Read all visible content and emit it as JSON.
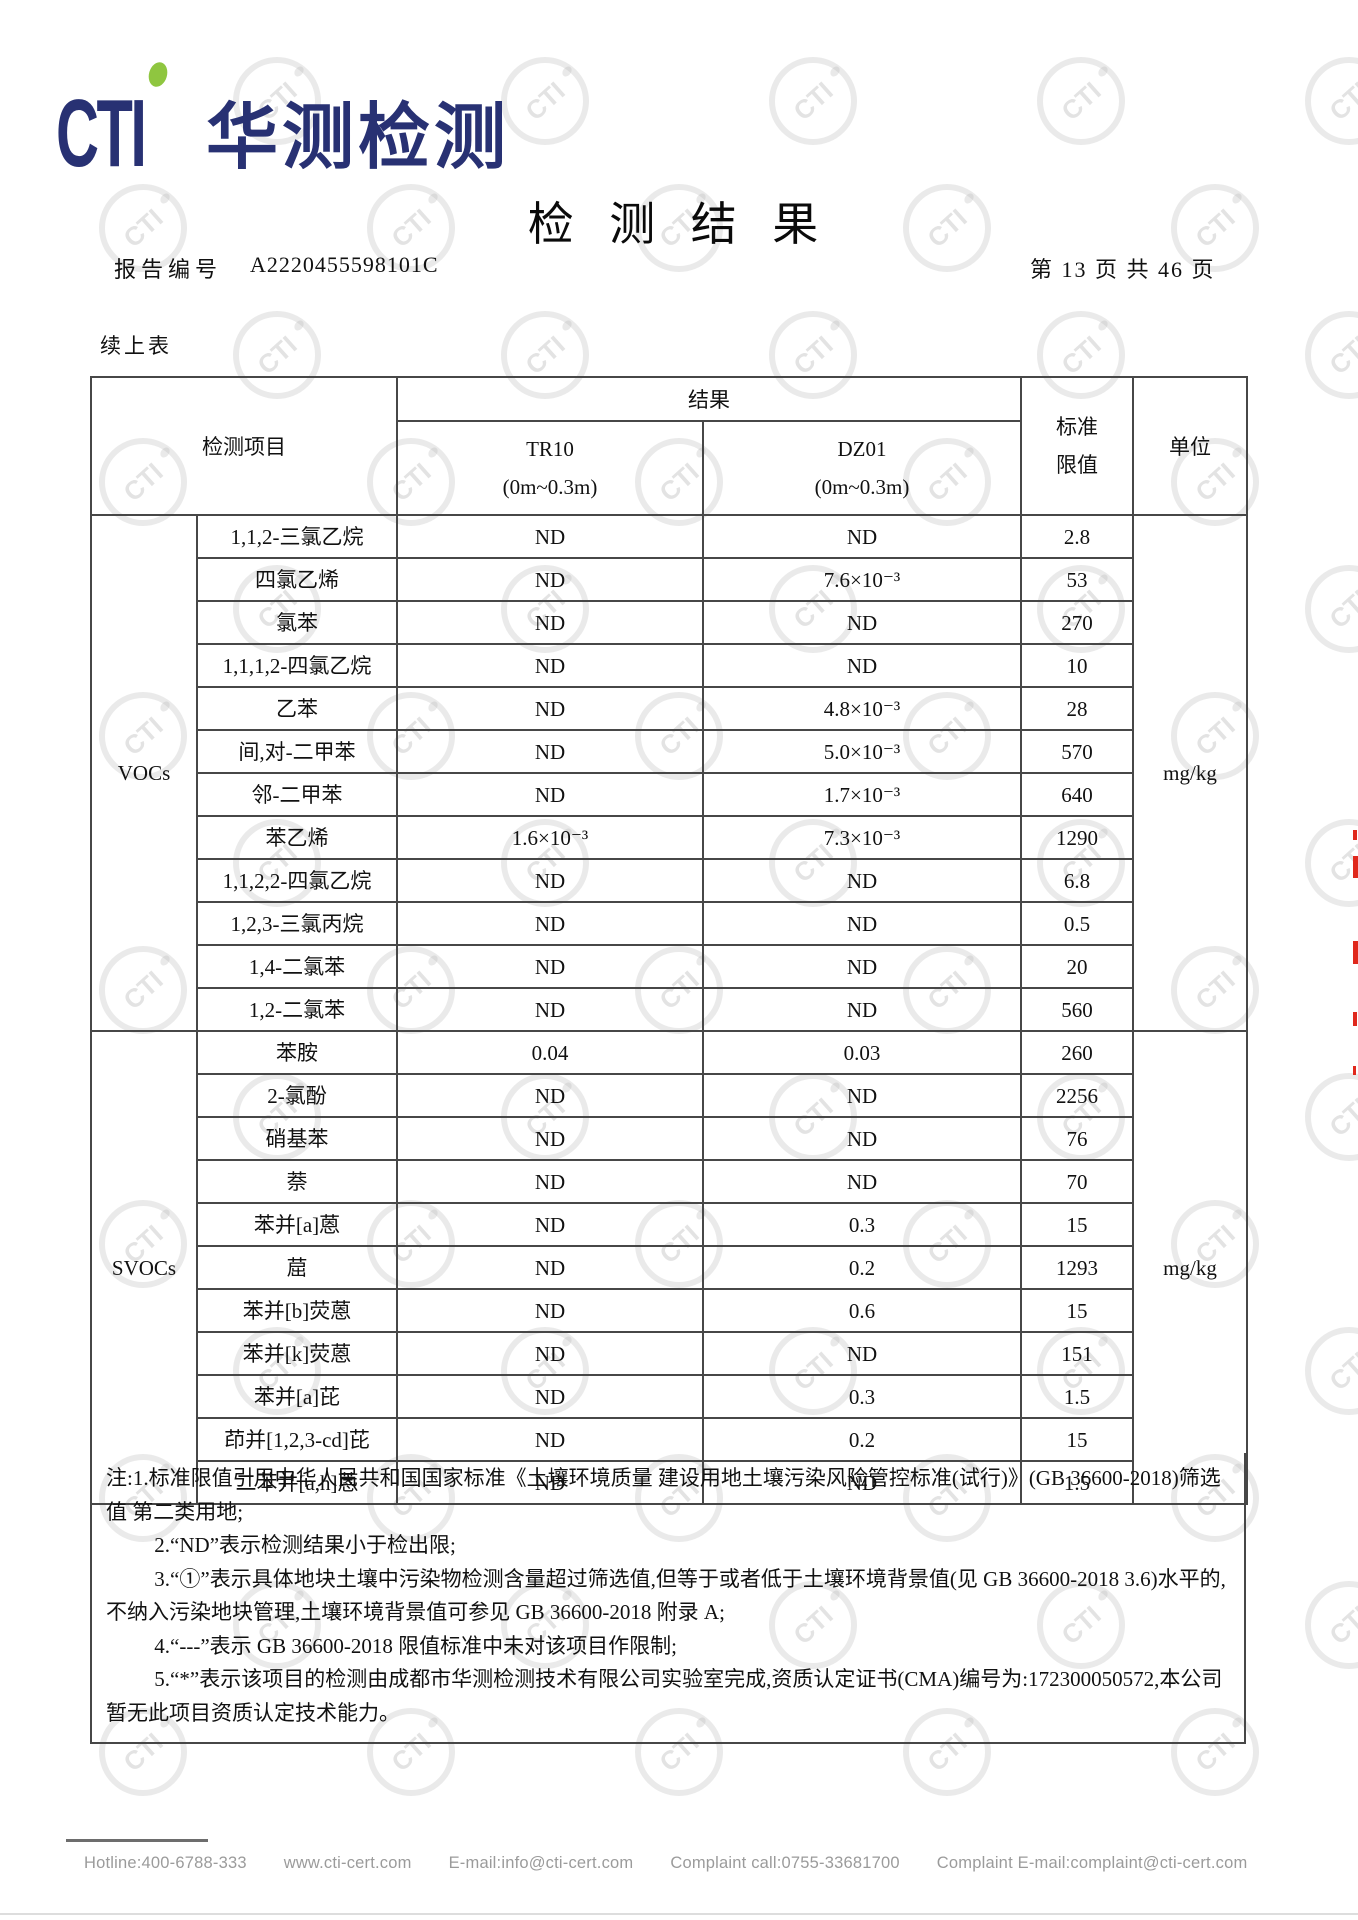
{
  "header": {
    "logo_text": "CTI",
    "brand": "华测检测",
    "title": "检 测 结 果",
    "report_label": "报告编号",
    "report_number": "A2220455598101C",
    "page_info": "第 13 页 共 46 页",
    "continued_label": "续上表"
  },
  "table": {
    "headers": {
      "item": "检测项目",
      "result": "结果",
      "col1": "TR10\n(0m~0.3m)",
      "col2": "DZ01\n(0m~0.3m)",
      "limit": "标准\n限值",
      "unit": "单位"
    },
    "groups": [
      {
        "category": "VOCs",
        "unit": "mg/kg",
        "rows": [
          {
            "name": "1,1,2-三氯乙烷",
            "tr10": "ND",
            "dz01": "ND",
            "limit": "2.8"
          },
          {
            "name": "四氯乙烯",
            "tr10": "ND",
            "dz01": "7.6×10⁻³",
            "limit": "53"
          },
          {
            "name": "氯苯",
            "tr10": "ND",
            "dz01": "ND",
            "limit": "270"
          },
          {
            "name": "1,1,1,2-四氯乙烷",
            "tr10": "ND",
            "dz01": "ND",
            "limit": "10"
          },
          {
            "name": "乙苯",
            "tr10": "ND",
            "dz01": "4.8×10⁻³",
            "limit": "28"
          },
          {
            "name": "间,对-二甲苯",
            "tr10": "ND",
            "dz01": "5.0×10⁻³",
            "limit": "570"
          },
          {
            "name": "邻-二甲苯",
            "tr10": "ND",
            "dz01": "1.7×10⁻³",
            "limit": "640"
          },
          {
            "name": "苯乙烯",
            "tr10": "1.6×10⁻³",
            "dz01": "7.3×10⁻³",
            "limit": "1290"
          },
          {
            "name": "1,1,2,2-四氯乙烷",
            "tr10": "ND",
            "dz01": "ND",
            "limit": "6.8"
          },
          {
            "name": "1,2,3-三氯丙烷",
            "tr10": "ND",
            "dz01": "ND",
            "limit": "0.5"
          },
          {
            "name": "1,4-二氯苯",
            "tr10": "ND",
            "dz01": "ND",
            "limit": "20"
          },
          {
            "name": "1,2-二氯苯",
            "tr10": "ND",
            "dz01": "ND",
            "limit": "560"
          }
        ]
      },
      {
        "category": "SVOCs",
        "unit": "mg/kg",
        "rows": [
          {
            "name": "苯胺",
            "tr10": "0.04",
            "dz01": "0.03",
            "limit": "260"
          },
          {
            "name": "2-氯酚",
            "tr10": "ND",
            "dz01": "ND",
            "limit": "2256"
          },
          {
            "name": "硝基苯",
            "tr10": "ND",
            "dz01": "ND",
            "limit": "76"
          },
          {
            "name": "萘",
            "tr10": "ND",
            "dz01": "ND",
            "limit": "70"
          },
          {
            "name": "苯并[a]蒽",
            "tr10": "ND",
            "dz01": "0.3",
            "limit": "15"
          },
          {
            "name": "䓛",
            "tr10": "ND",
            "dz01": "0.2",
            "limit": "1293"
          },
          {
            "name": "苯并[b]荧蒽",
            "tr10": "ND",
            "dz01": "0.6",
            "limit": "15"
          },
          {
            "name": "苯并[k]荧蒽",
            "tr10": "ND",
            "dz01": "ND",
            "limit": "151"
          },
          {
            "name": "苯并[a]芘",
            "tr10": "ND",
            "dz01": "0.3",
            "limit": "1.5"
          },
          {
            "name": "茚并[1,2,3-cd]芘",
            "tr10": "ND",
            "dz01": "0.2",
            "limit": "15"
          },
          {
            "name": "二苯并[a,h]蒽",
            "tr10": "ND",
            "dz01": "ND",
            "limit": "1.5"
          }
        ]
      }
    ]
  },
  "notes": {
    "label": "注:",
    "items": [
      "1.标准限值引用中华人民共和国国家标准《土壤环境质量 建设用地土壤污染风险管控标准(试行)》(GB 36600-2018)筛选值 第二类用地;",
      "2.“ND”表示检测结果小于检出限;",
      "3.“①”表示具体地块土壤中污染物检测含量超过筛选值,但等于或者低于土壤环境背景值(见 GB 36600-2018 3.6)水平的,不纳入污染地块管理,土壤环境背景值可参见 GB 36600-2018 附录 A;",
      "4.“---”表示 GB 36600-2018 限值标准中未对该项目作限制;",
      "5.“*”表示该项目的检测由成都市华测检测技术有限公司实验室完成,资质认定证书(CMA)编号为:172300050572,本公司暂无此项目资质认定技术能力。"
    ]
  },
  "footer": {
    "items": [
      "Hotline:400-6788-333",
      "www.cti-cert.com",
      "E-mail:info@cti-cert.com",
      "Complaint call:0755-33681700",
      "Complaint E-mail:complaint@cti-cert.com"
    ]
  },
  "watermark": {
    "text": "CTI"
  },
  "colors": {
    "brand_navy": "#283173",
    "brand_green": "#8fc640",
    "stamp_red": "#e0281c"
  }
}
